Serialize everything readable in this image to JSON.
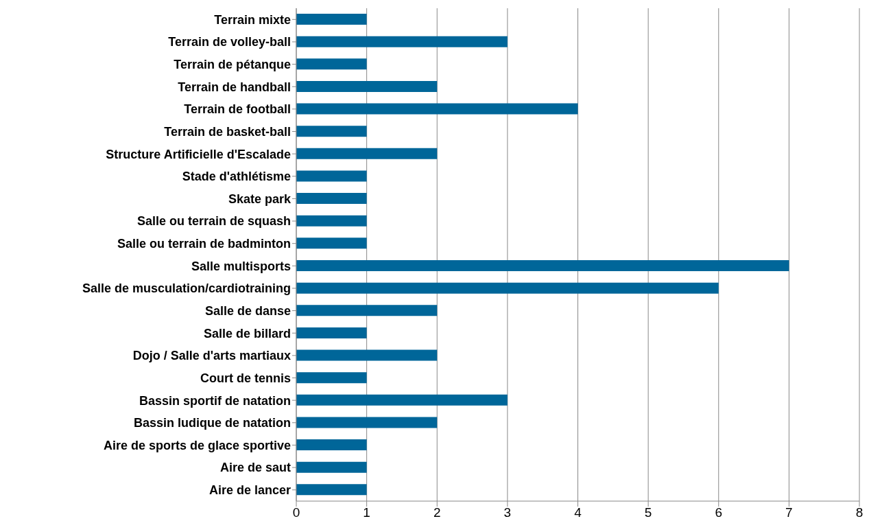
{
  "chart_data": {
    "type": "bar",
    "orientation": "horizontal",
    "categories": [
      "Terrain mixte",
      "Terrain de volley-ball",
      "Terrain de pétanque",
      "Terrain de handball",
      "Terrain de football",
      "Terrain de basket-ball",
      "Structure Artificielle d'Escalade",
      "Stade d'athlétisme",
      "Skate park",
      "Salle ou terrain de squash",
      "Salle ou terrain de badminton",
      "Salle multisports",
      "Salle de musculation/cardiotraining",
      "Salle de danse",
      "Salle de billard",
      "Dojo / Salle d'arts martiaux",
      "Court de tennis",
      "Bassin sportif de natation",
      "Bassin ludique de natation",
      "Aire de sports de glace sportive",
      "Aire de saut",
      "Aire de lancer"
    ],
    "values": [
      1,
      3,
      1,
      2,
      4,
      1,
      2,
      1,
      1,
      1,
      1,
      7,
      6,
      2,
      1,
      2,
      1,
      3,
      2,
      1,
      1,
      1
    ],
    "color": "#006699",
    "xlim": [
      0,
      8
    ],
    "xticks": [
      0,
      1,
      2,
      3,
      4,
      5,
      6,
      7,
      8
    ],
    "grid": "x",
    "legend": false
  }
}
